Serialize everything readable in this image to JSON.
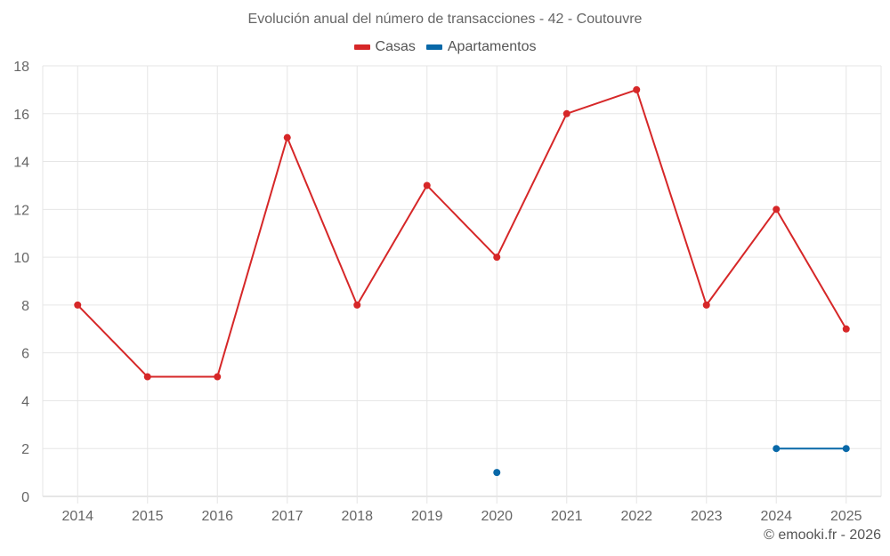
{
  "title": "Evolución anual del número de transacciones - 42 - Coutouvre",
  "legend": [
    {
      "label": "Casas",
      "color": "#d62728"
    },
    {
      "label": "Apartamentos",
      "color": "#0868a8"
    }
  ],
  "credit": "© emooki.fr - 2026",
  "chart_data": {
    "type": "line",
    "title": "Evolución anual del número de transacciones - 42 - Coutouvre",
    "xlabel": "",
    "ylabel": "",
    "categories": [
      "2014",
      "2015",
      "2016",
      "2017",
      "2018",
      "2019",
      "2020",
      "2021",
      "2022",
      "2023",
      "2024",
      "2025"
    ],
    "ylim": [
      0,
      18
    ],
    "yticks": [
      0,
      2,
      4,
      6,
      8,
      10,
      12,
      14,
      16,
      18
    ],
    "grid": true,
    "legend_position": "top",
    "series": [
      {
        "name": "Casas",
        "color": "#d62728",
        "values": [
          8,
          5,
          5,
          15,
          8,
          13,
          10,
          16,
          17,
          8,
          12,
          7
        ]
      },
      {
        "name": "Apartamentos",
        "color": "#0868a8",
        "values": [
          null,
          null,
          null,
          null,
          null,
          null,
          1,
          null,
          null,
          null,
          2,
          2
        ]
      }
    ]
  }
}
